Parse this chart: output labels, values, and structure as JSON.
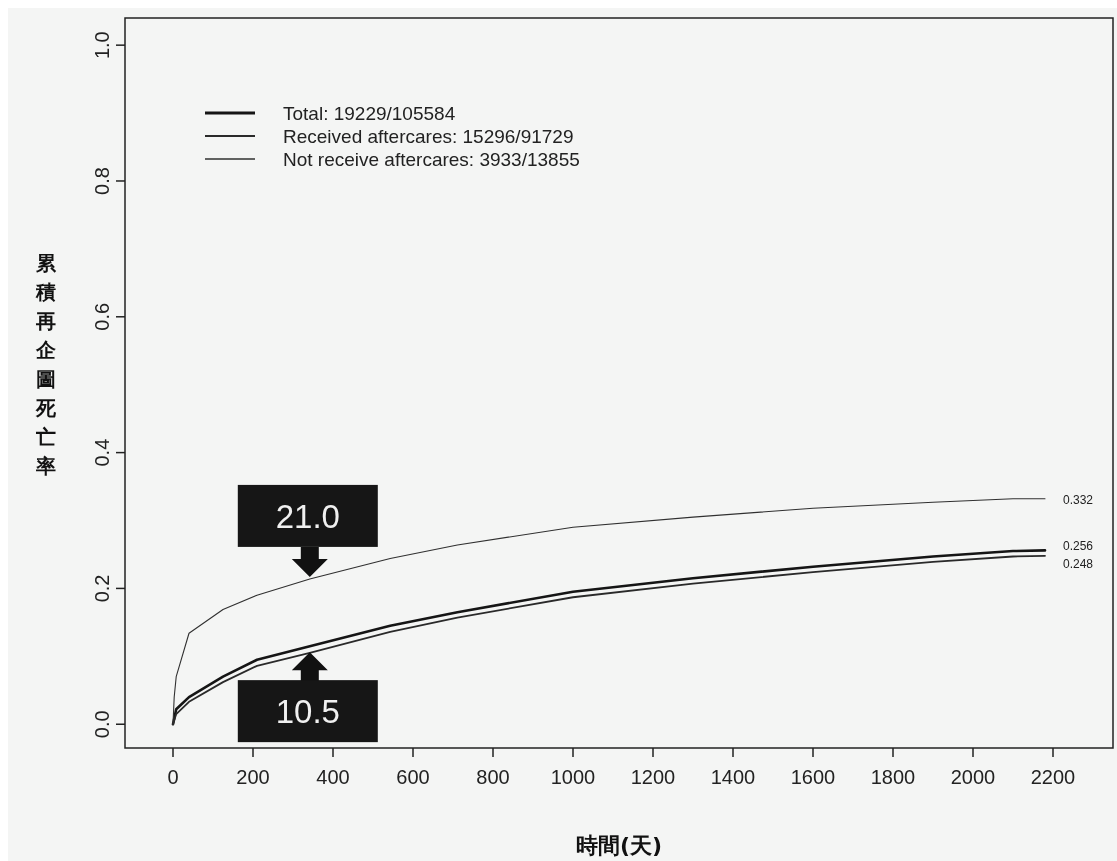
{
  "chart_data": {
    "type": "line",
    "xlabel": "時間(天)",
    "ylabel": "累積再企圖死亡率",
    "xlim": [
      -120,
      2350
    ],
    "ylim": [
      -0.035,
      1.04
    ],
    "xticks": [
      0,
      200,
      400,
      600,
      800,
      1000,
      1200,
      1400,
      1600,
      1800,
      2000,
      2200
    ],
    "yticks": [
      {
        "value": 0,
        "label": "0.0"
      },
      0.2,
      0.4,
      0.6,
      0.8,
      {
        "value": 1,
        "label": "1.0"
      }
    ],
    "legend": "top left",
    "grid": false,
    "series": [
      {
        "name": "Total: 19229/105584",
        "color": "#151515",
        "x": [
          0,
          8,
          40,
          125,
          210,
          342,
          543,
          711,
          1000,
          1300,
          1600,
          1900,
          2100,
          2180
        ],
        "values": [
          0,
          0.022,
          0.04,
          0.07,
          0.095,
          0.115,
          0.145,
          0.165,
          0.195,
          0.215,
          0.232,
          0.247,
          0.255,
          0.256
        ]
      },
      {
        "name": "Received aftercares: 15296/91729",
        "color": "#2a2a2a",
        "x": [
          0,
          8,
          40,
          125,
          210,
          342,
          543,
          711,
          1000,
          1300,
          1600,
          1900,
          2100,
          2180
        ],
        "values": [
          0,
          0.015,
          0.033,
          0.062,
          0.086,
          0.105,
          0.136,
          0.157,
          0.187,
          0.207,
          0.224,
          0.239,
          0.247,
          0.248
        ]
      },
      {
        "name": "Not receive aftercares: 3933/13855",
        "color": "#303030",
        "x": [
          0,
          3,
          8,
          40,
          125,
          210,
          342,
          543,
          711,
          1000,
          1300,
          1600,
          1900,
          2100,
          2180
        ],
        "values": [
          0,
          0.04,
          0.07,
          0.134,
          0.169,
          0.19,
          0.214,
          0.244,
          0.264,
          0.29,
          0.305,
          0.318,
          0.327,
          0.332,
          0.332
        ]
      }
    ],
    "annotations": [
      "21.0",
      "10.5",
      "0.332",
      "0.256",
      "0.248"
    ]
  }
}
